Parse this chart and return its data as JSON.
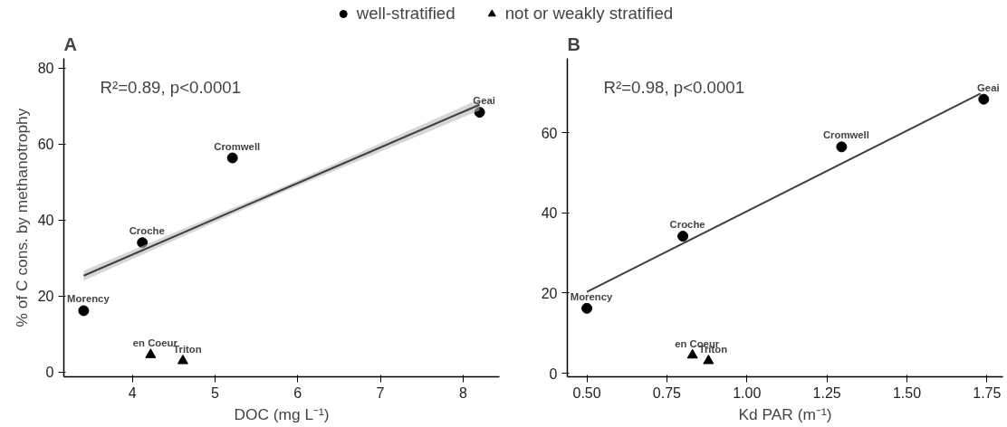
{
  "chart_data": [
    {
      "type": "scatter",
      "title": "A",
      "xlabel": "DOC (mg L⁻¹)",
      "ylabel": "% of C cons. by methanotrophy",
      "legend": "top",
      "grid": false,
      "xlim": [
        3.17,
        8.44
      ],
      "ylim": [
        -1.3,
        82.5
      ],
      "xticks": [
        4,
        5,
        6,
        7,
        8
      ],
      "yticks": [
        0,
        20,
        40,
        60,
        80
      ],
      "series": [
        {
          "name": "well-stratified",
          "color": "#000000",
          "marker": "circle",
          "x": [
            3.41,
            4.12,
            5.21,
            8.2
          ],
          "values": [
            16.1,
            34.0,
            56.3,
            68.3
          ]
        },
        {
          "name": "not or weakly stratified",
          "color": "#000000",
          "marker": "triangle",
          "x": [
            4.22,
            4.61
          ],
          "values": [
            4.5,
            2.9
          ]
        },
        {
          "type": "line",
          "color": "#404040",
          "marker": "none",
          "x": [
            3.41,
            5.8,
            8.2
          ],
          "values": [
            25.3,
            47.8,
            70.3
          ],
          "lower": [
            24.0,
            47.1,
            68.8
          ],
          "upper": [
            26.6,
            48.5,
            71.8
          ]
        }
      ],
      "annotations": [
        "R²=0.89, p<0.0001",
        {
          "text": "Morency",
          "x": 3.41,
          "y": 16.1
        },
        {
          "text": "Croche",
          "x": 4.12,
          "y": 34.0
        },
        {
          "text": "Cromwell",
          "x": 5.21,
          "y": 56.3
        },
        {
          "text": "Geai",
          "x": 8.2,
          "y": 68.3
        },
        {
          "text": "en Coeur",
          "x": 4.22,
          "y": 4.5
        },
        {
          "text": "Triton",
          "x": 4.61,
          "y": 2.9
        }
      ]
    },
    {
      "type": "scatter",
      "title": "B",
      "xlabel": "Kd PAR (m⁻¹)",
      "grid": false,
      "xlim": [
        0.439,
        1.8
      ],
      "ylim": [
        -0.9,
        78.6
      ],
      "xticks": [
        {
          "value": 0.5,
          "label": "0.50"
        },
        0.75,
        {
          "value": 1.0,
          "label": "1.00"
        },
        1.25,
        {
          "value": 1.5,
          "label": "1.50"
        },
        1.75
      ],
      "yticks": [
        0,
        20,
        40,
        60
      ],
      "series": [
        {
          "color": "#000000",
          "marker": "circle",
          "x": [
            0.5,
            0.8,
            1.296,
            1.74
          ],
          "values": [
            16.2,
            34.2,
            56.5,
            68.4
          ]
        },
        {
          "color": "#000000",
          "marker": "triangle",
          "x": [
            0.83,
            0.88
          ],
          "values": [
            4.5,
            3.1
          ]
        },
        {
          "type": "line",
          "color": "#404040",
          "marker": "none",
          "x": [
            0.5,
            1.73
          ],
          "values": [
            20.3,
            69.8
          ]
        }
      ],
      "annotations": [
        "R²=0.98, p<0.0001",
        {
          "text": "Morency",
          "x": 0.5,
          "y": 16.2
        },
        {
          "text": "Croche",
          "x": 0.8,
          "y": 34.2
        },
        {
          "text": "Cromwell",
          "x": 1.296,
          "y": 56.5
        },
        {
          "text": "Geai",
          "x": 1.74,
          "y": 68.4
        },
        {
          "text": "en Coeur",
          "x": 0.83,
          "y": 4.5
        },
        {
          "text": "Triton",
          "x": 0.88,
          "y": 3.1
        }
      ]
    }
  ]
}
